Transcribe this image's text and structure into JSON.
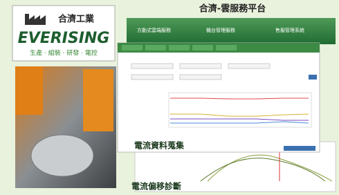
{
  "logo": {
    "company": "合濟工業",
    "brand": "EVERISING",
    "tagline": "生產 · 組裝 · 研發 · 電控"
  },
  "header": {
    "title": "合濟-雲服務平台"
  },
  "banner": {
    "tabs": [
      "方動式雲端服務",
      "機台管理服務",
      "售服管理系統"
    ]
  },
  "captions": [
    "電流資料蒐集",
    "電流偏移診斷"
  ]
}
